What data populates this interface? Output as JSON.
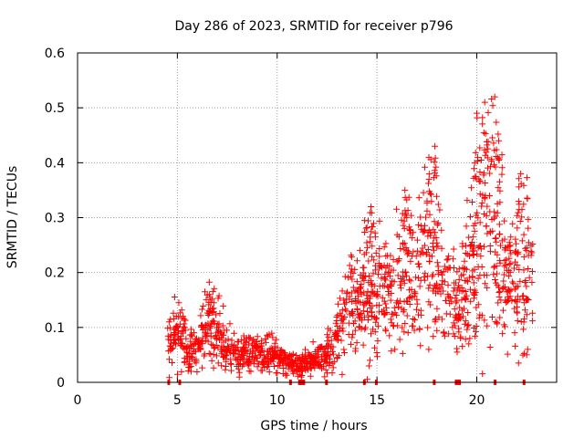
{
  "chart_data": {
    "type": "scatter",
    "title": "Day 286 of 2023, SRMTID for receiver p796",
    "xlabel": "GPS time / hours",
    "ylabel": "SRMTID / TECUs",
    "xlim": [
      0,
      24
    ],
    "ylim": [
      0,
      0.6
    ],
    "x_ticks": [
      0,
      5,
      10,
      15,
      20
    ],
    "x_tick_labels": [
      "0",
      "5",
      "10",
      "15",
      "20"
    ],
    "y_ticks": [
      0,
      0.1,
      0.2,
      0.3,
      0.4,
      0.5,
      0.6
    ],
    "y_tick_labels": [
      "0",
      "0.1",
      "0.2",
      "0.3",
      "0.4",
      "0.5",
      "0.6"
    ],
    "grid": true,
    "marker": "plus",
    "color": "#ff0000",
    "series": [
      {
        "name": "SRMTID",
        "trend": [
          [
            4.5,
            0.08
          ],
          [
            5.0,
            0.1
          ],
          [
            5.5,
            0.06
          ],
          [
            6.0,
            0.06
          ],
          [
            6.5,
            0.11
          ],
          [
            7.0,
            0.09
          ],
          [
            7.5,
            0.06
          ],
          [
            8.0,
            0.05
          ],
          [
            8.5,
            0.06
          ],
          [
            9.0,
            0.05
          ],
          [
            9.5,
            0.05
          ],
          [
            10.0,
            0.05
          ],
          [
            10.5,
            0.035
          ],
          [
            11.0,
            0.03
          ],
          [
            11.5,
            0.04
          ],
          [
            12.0,
            0.04
          ],
          [
            12.5,
            0.05
          ],
          [
            13.0,
            0.08
          ],
          [
            13.5,
            0.15
          ],
          [
            14.0,
            0.12
          ],
          [
            14.5,
            0.18
          ],
          [
            15.0,
            0.17
          ],
          [
            15.5,
            0.15
          ],
          [
            16.0,
            0.17
          ],
          [
            16.5,
            0.22
          ],
          [
            17.0,
            0.2
          ],
          [
            17.5,
            0.23
          ],
          [
            18.0,
            0.19
          ],
          [
            18.5,
            0.17
          ],
          [
            19.0,
            0.14
          ],
          [
            19.5,
            0.19
          ],
          [
            20.0,
            0.26
          ],
          [
            20.5,
            0.27
          ],
          [
            21.0,
            0.25
          ],
          [
            21.5,
            0.19
          ],
          [
            22.0,
            0.2
          ],
          [
            22.5,
            0.2
          ],
          [
            22.8,
            0.19
          ]
        ],
        "peaks": [
          [
            6.6,
            0.16
          ],
          [
            14.7,
            0.32
          ],
          [
            16.4,
            0.35
          ],
          [
            17.6,
            0.41
          ],
          [
            17.9,
            0.43
          ],
          [
            20.0,
            0.49
          ],
          [
            20.4,
            0.51
          ],
          [
            20.9,
            0.52
          ],
          [
            21.1,
            0.44
          ],
          [
            22.2,
            0.38
          ]
        ],
        "dips": [
          [
            14.6,
            0.03
          ],
          [
            19.6,
            0.07
          ],
          [
            22.5,
            0.05
          ]
        ],
        "gaps": [
          [
            4.5,
            4.6
          ],
          [
            5.05,
            5.15
          ],
          [
            10.6,
            10.7
          ],
          [
            11.05,
            11.4
          ],
          [
            12.4,
            12.5
          ],
          [
            14.3,
            14.4
          ],
          [
            14.9,
            15.0
          ],
          [
            17.8,
            17.9
          ],
          [
            18.9,
            19.2
          ],
          [
            20.85,
            20.9
          ],
          [
            22.3,
            22.4
          ]
        ]
      }
    ]
  }
}
